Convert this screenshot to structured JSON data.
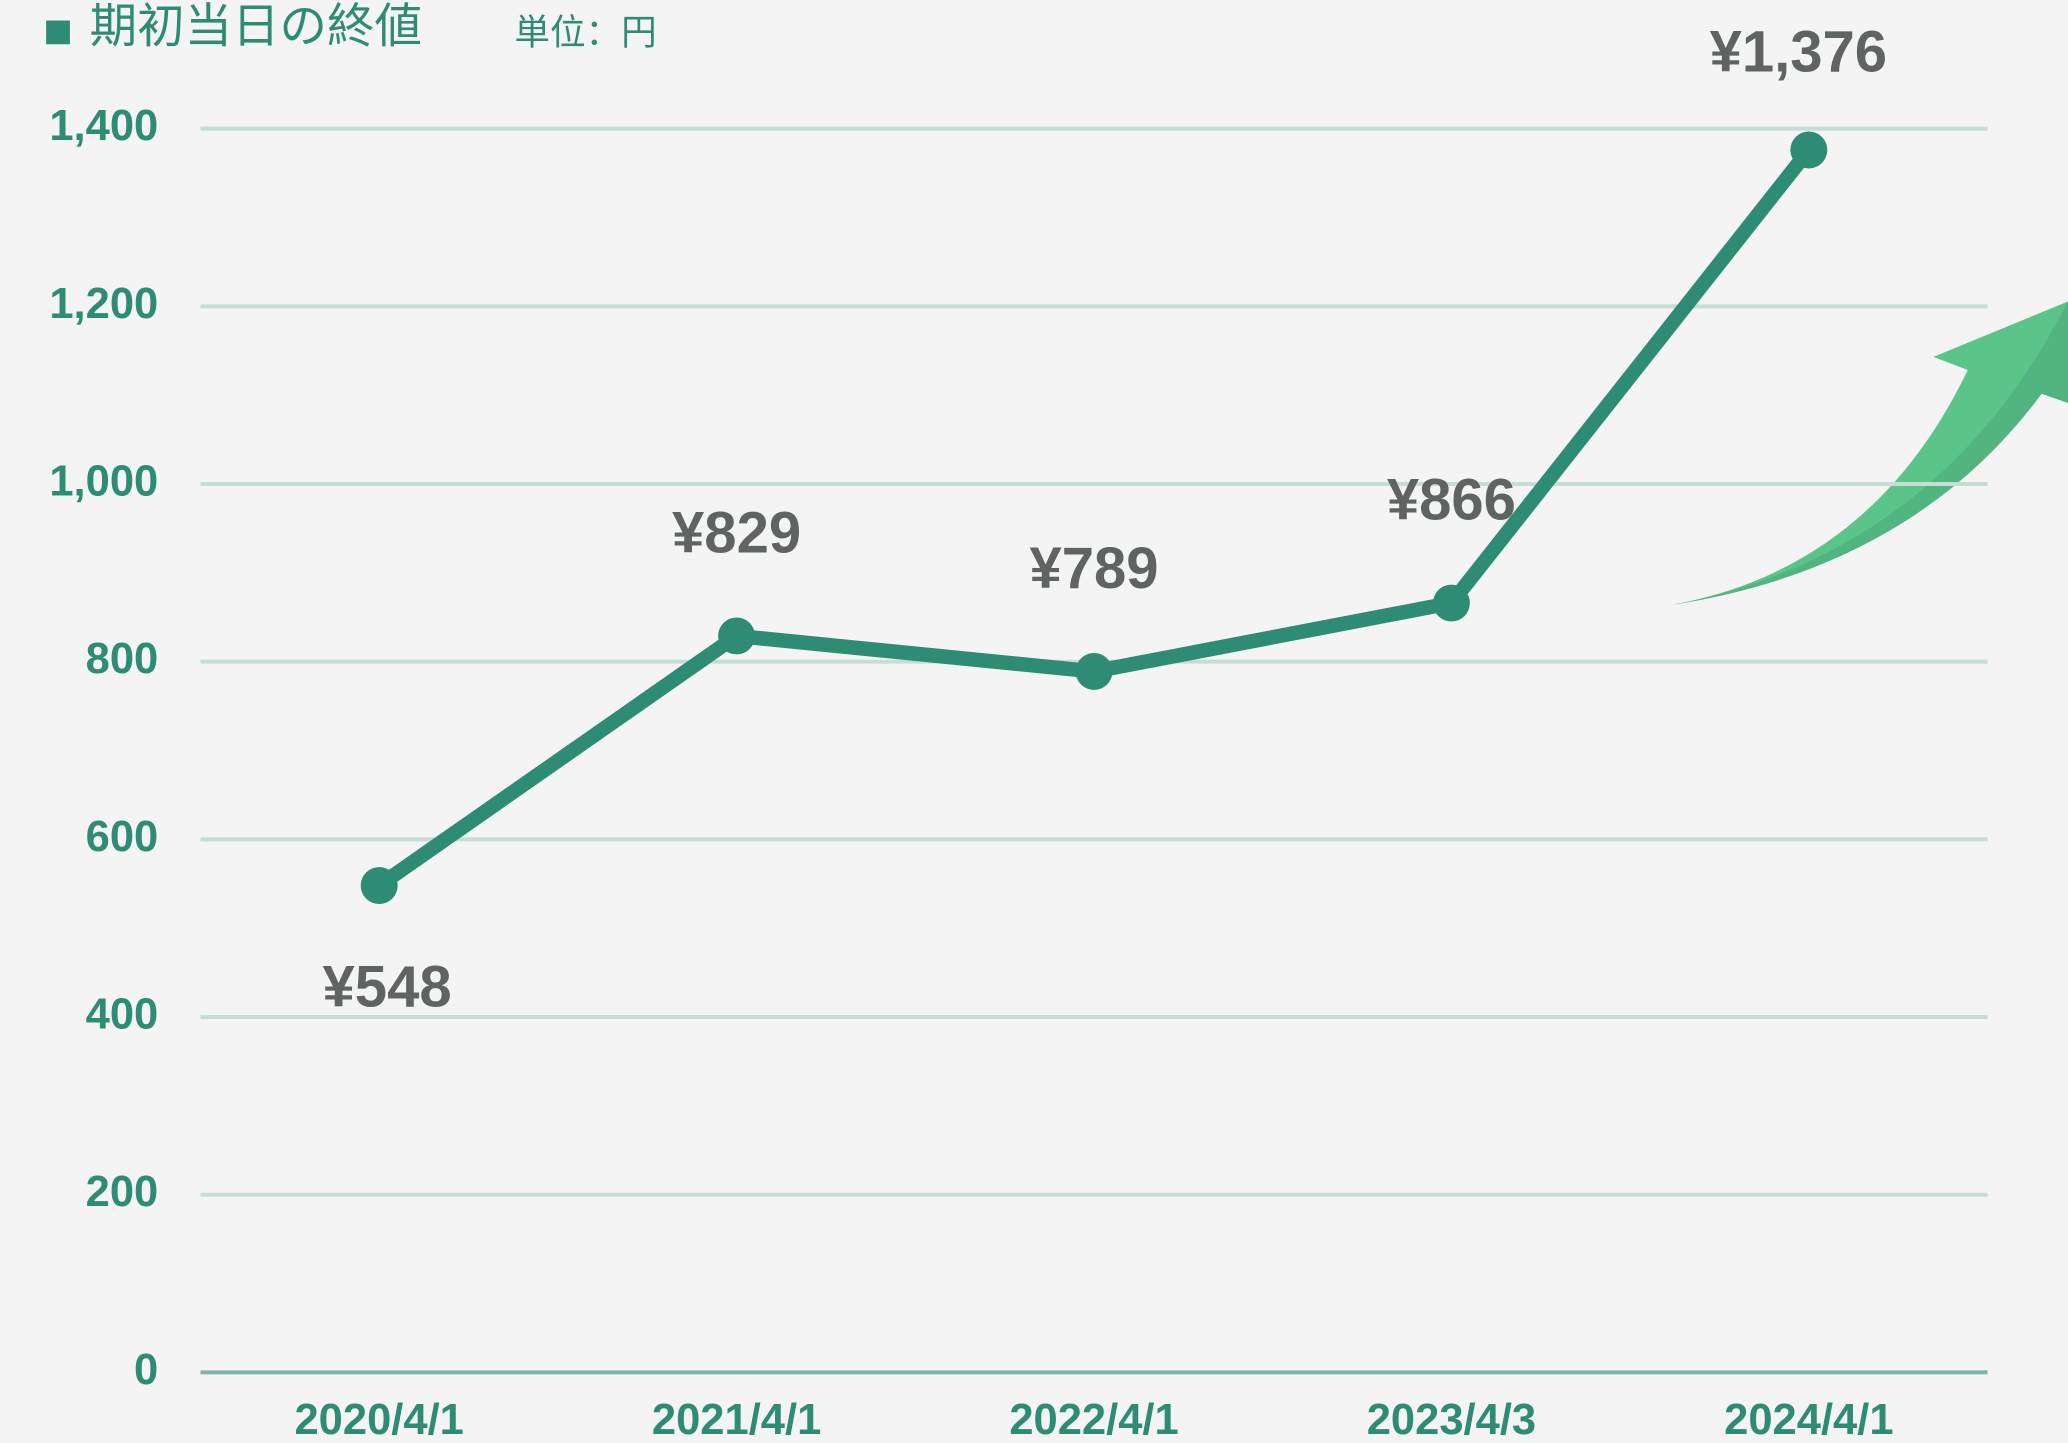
{
  "chart_data": {
    "type": "line",
    "categories": [
      "2020/4/1",
      "2021/4/1",
      "2022/4/1",
      "2023/4/3",
      "2024/4/1"
    ],
    "series": [
      {
        "name": "期初当日の終値",
        "color": "#2e8b74",
        "values": [
          548,
          829,
          789,
          866,
          1376
        ],
        "value_labels": [
          "¥548",
          "¥829",
          "¥789",
          "¥866",
          "¥1,376"
        ]
      }
    ],
    "unit": "単位：円",
    "ylim": [
      0,
      1400
    ],
    "yticks": [
      0,
      200,
      400,
      600,
      800,
      {
        "value": 1000,
        "label": "1,000"
      },
      {
        "value": 1200,
        "label": "1,200"
      },
      {
        "value": 1400,
        "label": "1,400"
      }
    ],
    "grid": true,
    "legend": "top-left"
  }
}
